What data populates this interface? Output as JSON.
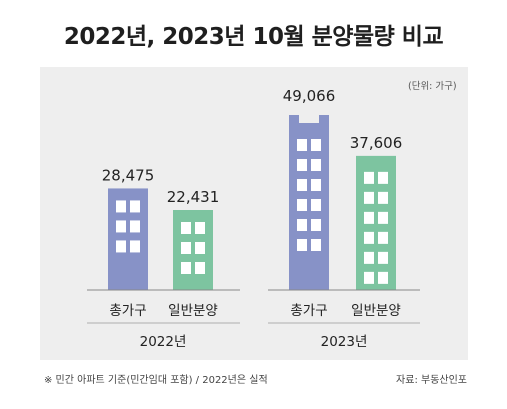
{
  "title": "2022년, 2023년 10월 분양물량 비교",
  "unit_label": "(단위: 가구)",
  "footnote": "※ 민간 아파트 기준(민간임대 포함) / 2022년은 실적",
  "source": "자료: 부동산인포",
  "chart_data": {
    "type": "bar",
    "title": "2022년, 2023년 10월 분양물량 비교",
    "ylabel": "가구",
    "categories": [
      "총가구",
      "일반분양"
    ],
    "groups": [
      "2022년",
      "2023년"
    ],
    "series": [
      {
        "name": "2022년",
        "values": [
          28475,
          22431
        ],
        "labels": [
          "28,475",
          "22,431"
        ]
      },
      {
        "name": "2023년",
        "values": [
          49066,
          37606
        ],
        "labels": [
          "49,066",
          "37,606"
        ]
      }
    ],
    "colors": {
      "총가구": "#8792c7",
      "일반분양": "#7dc4a0"
    }
  }
}
